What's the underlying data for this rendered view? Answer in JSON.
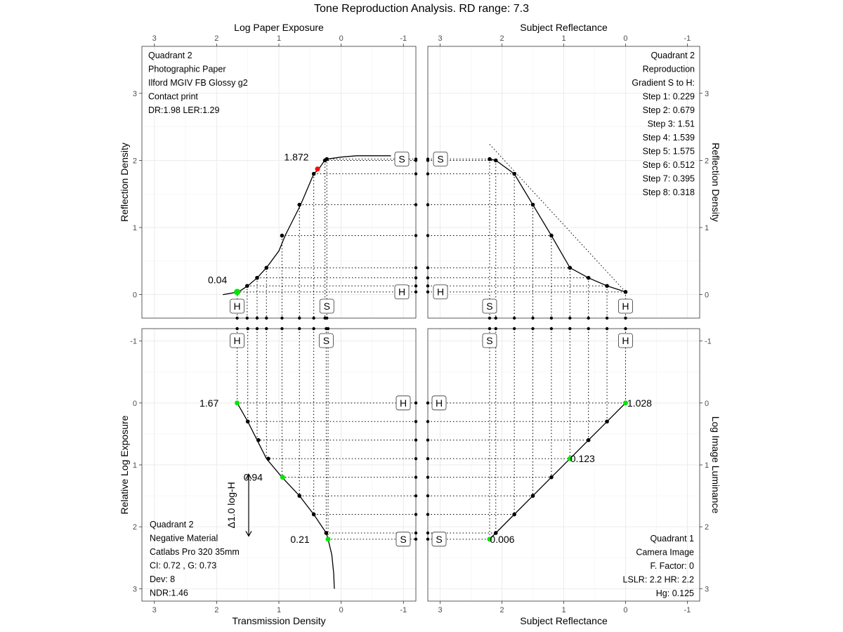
{
  "title": "Tone Reproduction Analysis. RD range: 7.3",
  "chart_data": {
    "type": "line",
    "panels": [
      {
        "id": "q2_paper",
        "axis_top_label": "Log Paper Exposure",
        "ylabel": "Reflection Density",
        "x_ticks": [
          "3",
          "2",
          "1",
          "0",
          "-1"
        ],
        "y_ticks": [
          "0",
          "1",
          "2",
          "3"
        ],
        "xlim": [
          3.2,
          -1.2
        ],
        "ylim": [
          -0.35,
          3.7
        ],
        "curve": {
          "x": [
            1.9,
            1.65,
            1.5,
            1.35,
            1.2,
            1.0,
            0.9,
            0.65,
            0.44,
            0.36,
            0.28,
            0.22,
            0.0,
            -0.25,
            -0.8
          ],
          "y": [
            0.0,
            0.04,
            0.13,
            0.25,
            0.4,
            0.65,
            0.88,
            1.34,
            1.8,
            1.872,
            1.98,
            2.02,
            2.05,
            2.07,
            2.07
          ]
        },
        "points": {
          "x": [
            1.67,
            1.51,
            1.35,
            1.2,
            0.95,
            0.67,
            0.44,
            0.26,
            0.23
          ],
          "y": [
            0.04,
            0.13,
            0.25,
            0.4,
            0.88,
            1.34,
            1.8,
            2.0,
            2.02
          ]
        },
        "highlight": [
          {
            "x": 1.67,
            "y": 0.04,
            "label": "0.04",
            "color": "#00e600"
          },
          {
            "x": 0.38,
            "y": 1.872,
            "label": "1.872",
            "color": "#ff0000"
          }
        ],
        "info": [
          "Quadrant 2",
          "Photographic Paper",
          "Ilford MGIV FB Glossy g2",
          "Contact print",
          "DR:1.98 LER:1.29"
        ]
      },
      {
        "id": "q3_reproduction",
        "axis_top_label": "Subject Reflectance",
        "ylabel": "Reflection Density",
        "x_ticks": [
          "3",
          "2",
          "1",
          "0",
          "-1"
        ],
        "y_ticks": [
          "0",
          "1",
          "2",
          "3"
        ],
        "xlim": [
          3.2,
          -1.2
        ],
        "ylim": [
          -0.35,
          3.7
        ],
        "curve": {
          "x": [
            2.2,
            2.1,
            1.8,
            1.5,
            1.2,
            0.9,
            0.6,
            0.3,
            0.0
          ],
          "y": [
            2.02,
            2.0,
            1.8,
            1.34,
            0.88,
            0.4,
            0.25,
            0.13,
            0.04
          ]
        },
        "points": {
          "x": [
            2.2,
            2.1,
            1.8,
            1.5,
            1.2,
            0.9,
            0.6,
            0.3,
            0.0
          ],
          "y": [
            2.02,
            2.0,
            1.8,
            1.34,
            0.88,
            0.4,
            0.25,
            0.13,
            0.04
          ]
        },
        "reference_line": {
          "x": [
            2.2,
            0.0
          ],
          "y": [
            2.24,
            0.04
          ]
        },
        "info": [
          "Quadrant 2",
          "Reproduction",
          "Gradient S to H:",
          "Step 1: 0.229",
          "Step 2: 0.679",
          "Step 3: 1.51",
          "Step 4: 1.539",
          "Step 5: 1.575",
          "Step 6: 0.512",
          "Step 7: 0.395",
          "Step 8: 0.318"
        ]
      },
      {
        "id": "q2_negative",
        "xlabel": "Transmission Density",
        "ylabel": "Relative Log Exposure",
        "x_ticks": [
          "3",
          "2",
          "1",
          "0",
          "-1"
        ],
        "y_ticks": [
          "-1",
          "0",
          "1",
          "2",
          "3"
        ],
        "xlim": [
          3.2,
          -1.2
        ],
        "ylim": [
          -1.2,
          3.2
        ],
        "curve": {
          "x": [
            1.67,
            1.5,
            1.35,
            1.2,
            0.95,
            0.67,
            0.44,
            0.24,
            0.21,
            0.15,
            0.12,
            0.11
          ],
          "y": [
            0.0,
            0.3,
            0.6,
            0.9,
            1.2,
            1.5,
            1.8,
            2.1,
            2.2,
            2.45,
            2.75,
            3.0
          ]
        },
        "points": {
          "x": [
            1.5,
            1.33,
            1.17,
            0.67,
            0.44,
            0.24
          ],
          "y": [
            0.3,
            0.6,
            0.9,
            1.5,
            1.8,
            2.1
          ]
        },
        "highlight": [
          {
            "x": 1.67,
            "y": 0.0,
            "label": "1.67",
            "color": "#00e600"
          },
          {
            "x": 0.94,
            "y": 1.2,
            "label": "0.94",
            "color": "#00e600"
          },
          {
            "x": 0.21,
            "y": 2.2,
            "label": "0.21",
            "color": "#00e600"
          }
        ],
        "delta_label": "Δ1.0 log-H",
        "info": [
          "Quadrant 2",
          "Negative Material",
          "Catlabs Pro 320 35mm",
          "CI: 0.72 , G: 0.73",
          "Dev: 8",
          "NDR:1.46"
        ]
      },
      {
        "id": "q1_camera",
        "xlabel": "Subject Reflectance",
        "ylabel": "Log Image Luminance",
        "x_ticks": [
          "3",
          "2",
          "1",
          "0",
          "-1"
        ],
        "y_ticks": [
          "-1",
          "0",
          "1",
          "2",
          "3"
        ],
        "xlim": [
          3.2,
          -1.2
        ],
        "ylim": [
          -1.2,
          3.2
        ],
        "curve": {
          "x": [
            2.2,
            2.1,
            1.8,
            1.5,
            1.2,
            0.9,
            0.6,
            0.3,
            0.0
          ],
          "y": [
            2.2,
            2.1,
            1.8,
            1.5,
            1.2,
            0.9,
            0.6,
            0.3,
            0.0
          ]
        },
        "points": {
          "x": [
            2.1,
            1.8,
            1.5,
            1.2,
            0.6,
            0.3
          ],
          "y": [
            2.1,
            1.8,
            1.5,
            1.2,
            0.6,
            0.3
          ]
        },
        "highlight": [
          {
            "x": 0.0,
            "y": 0.0,
            "label": "1.028",
            "color": "#00e600"
          },
          {
            "x": 0.9,
            "y": 0.9,
            "label": "0.123",
            "color": "#00e600"
          },
          {
            "x": 2.2,
            "y": 2.2,
            "label": "0.006",
            "color": "#00e600"
          }
        ],
        "info": [
          "Quadrant 1",
          "Camera Image",
          "F. Factor: 0",
          "LSLR: 2.2  HR: 2.2",
          "Hg: 0.125"
        ]
      }
    ],
    "markers": {
      "shadow": "S",
      "highlight": "H"
    }
  }
}
